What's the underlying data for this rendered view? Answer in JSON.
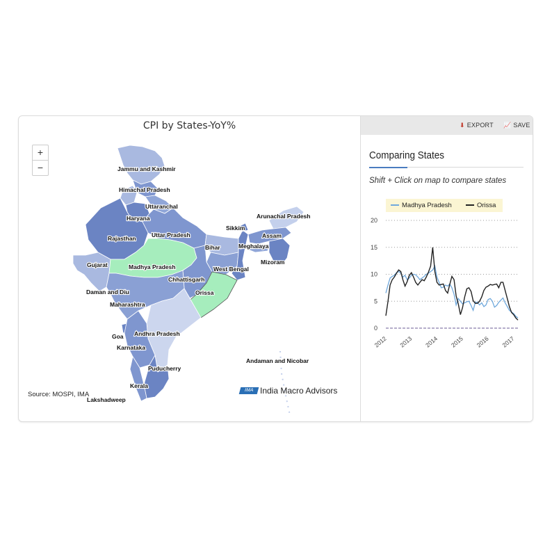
{
  "map": {
    "title": "CPI by States-YoY%",
    "zoom_in_label": "+",
    "zoom_out_label": "−",
    "source": "Source: MOSPI, IMA",
    "brand_badge": "IMA",
    "brand_name": "India Macro Advisors",
    "base_color": "#7f96cf",
    "highlight_color": "#a6edbd",
    "state_labels": [
      "Jammu and Kashmir",
      "Himachal Pradesh",
      "Uttaranchal",
      "Haryana",
      "Uttar Pradesh",
      "Rajasthan",
      "Arunachal Pradesh",
      "Sikkim",
      "Assam",
      "Bihar",
      "Meghalaya",
      "Mizoram",
      "Gujarat",
      "Madhya Pradesh",
      "West Bengal",
      "Chhattisgarh",
      "Daman and Diu",
      "Orissa",
      "Maharashtra",
      "Goa",
      "Andhra Pradesh",
      "Karnataka",
      "Andaman and Nicobar",
      "Puducherry",
      "Kerala",
      "Lakshadweep"
    ],
    "selected_states": [
      "Madhya Pradesh",
      "Orissa"
    ]
  },
  "side": {
    "export_label": "EXPORT",
    "save_label": "SAVE",
    "title": "Comparing States",
    "hint": "Shift + Click on map to compare states"
  },
  "chart_data": {
    "type": "line",
    "x_start": "2012-01",
    "x_end": "2017-03",
    "x_ticks": [
      "2012",
      "2013",
      "2014",
      "2015",
      "2016",
      "2017"
    ],
    "ylim": [
      0,
      20
    ],
    "y_ticks": [
      0,
      5,
      10,
      15,
      20
    ],
    "grid": "dotted horizontal",
    "legend_position": "top",
    "series": [
      {
        "name": "Madhya Pradesh",
        "color": "#6fa8dc",
        "values": [
          6.5,
          8.0,
          9.3,
          9.6,
          9.8,
          10.3,
          10.5,
          10.2,
          9.5,
          9.8,
          9.0,
          9.3,
          9.8,
          10.0,
          9.9,
          9.5,
          9.0,
          9.3,
          9.6,
          10.0,
          10.2,
          10.5,
          10.8,
          11.5,
          9.5,
          8.5,
          7.5,
          7.6,
          8.0,
          7.8,
          8.2,
          7.5,
          6.3,
          4.3,
          5.5,
          5.0,
          4.5,
          4.7,
          4.9,
          5.0,
          4.2,
          3.3,
          4.8,
          4.8,
          4.3,
          4.7,
          4.0,
          4.3,
          5.3,
          5.5,
          5.0,
          3.9,
          4.2,
          4.8,
          5.2,
          5.6,
          4.7,
          4.0,
          3.3,
          3.0,
          2.7,
          2.2,
          1.9
        ]
      },
      {
        "name": "Orissa",
        "color": "#222222",
        "values": [
          2.3,
          5.0,
          8.0,
          9.0,
          9.5,
          10.2,
          10.8,
          10.5,
          9.0,
          7.8,
          8.6,
          9.8,
          10.3,
          9.5,
          8.5,
          8.0,
          8.5,
          9.0,
          8.8,
          9.5,
          10.4,
          11.5,
          15.0,
          10.5,
          8.5,
          8.0,
          8.1,
          8.2,
          7.0,
          6.5,
          8.1,
          9.6,
          9.0,
          6.0,
          4.5,
          2.5,
          3.8,
          5.8,
          7.3,
          7.5,
          6.8,
          5.1,
          4.6,
          4.6,
          5.0,
          5.8,
          7.0,
          7.6,
          7.8,
          8.1,
          8.0,
          8.1,
          8.2,
          7.5,
          8.5,
          8.5,
          7.0,
          5.5,
          4.0,
          2.9,
          2.5,
          1.9,
          1.5
        ]
      }
    ]
  }
}
